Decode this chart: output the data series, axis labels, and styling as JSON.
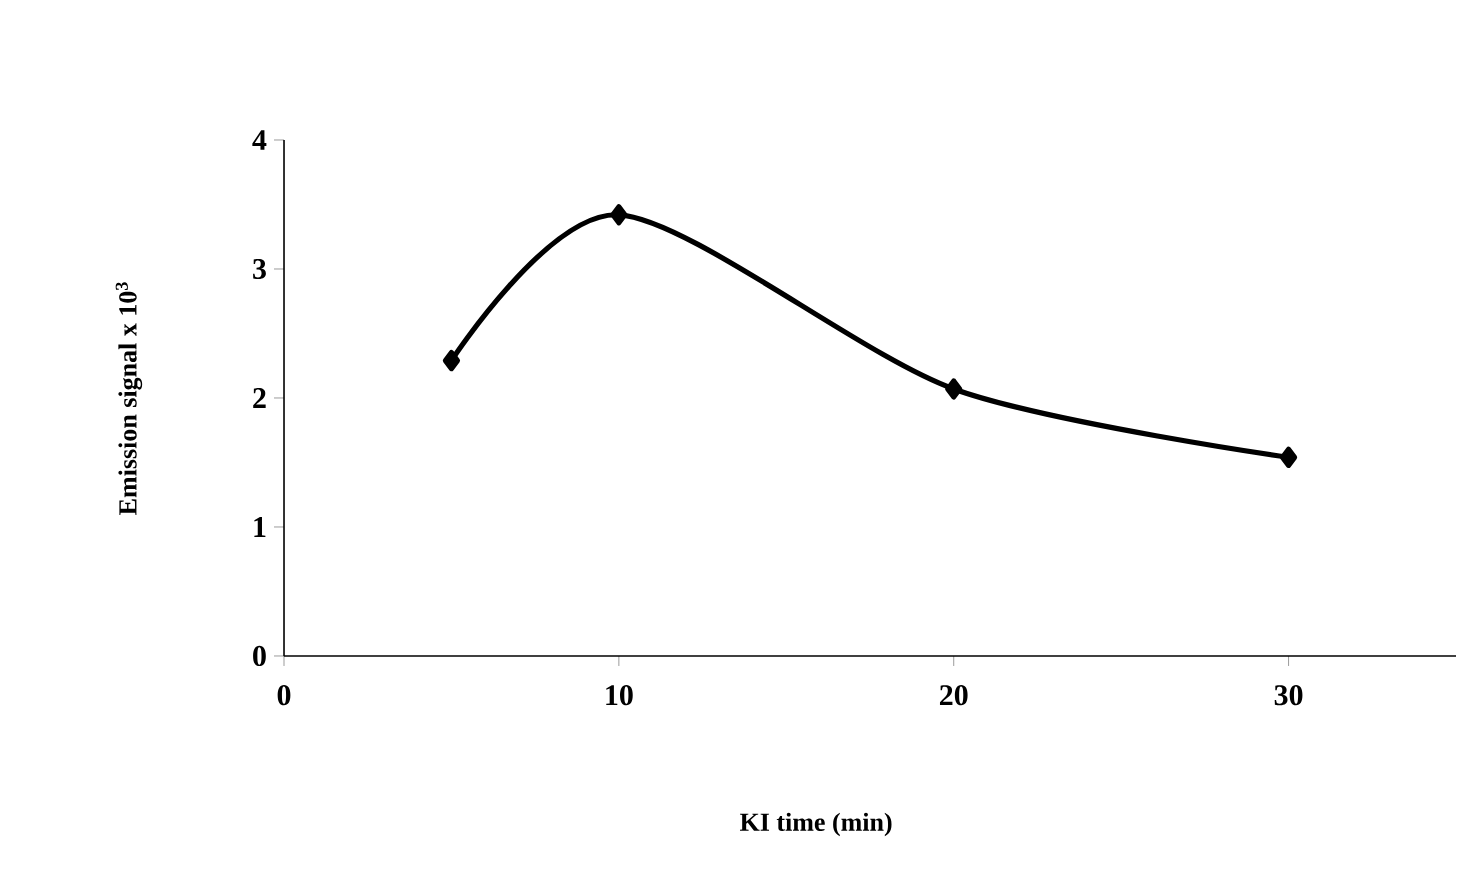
{
  "chart_data": {
    "type": "line",
    "xlabel": "KI time (min)",
    "ylabel": "Emission signal x 10$^{3}$",
    "x": [
      5,
      10,
      20,
      30
    ],
    "series": [
      {
        "color": "#000000",
        "values": [
          2.29,
          3.42,
          2.07,
          1.54
        ]
      }
    ],
    "xlim": [
      0,
      35
    ],
    "xticks": [
      0,
      10,
      20,
      30
    ],
    "ylim": [
      0,
      4
    ],
    "yticks": [
      0,
      1,
      2,
      3,
      4
    ],
    "grid": false,
    "marker": "diamond",
    "line_style": "solid"
  }
}
